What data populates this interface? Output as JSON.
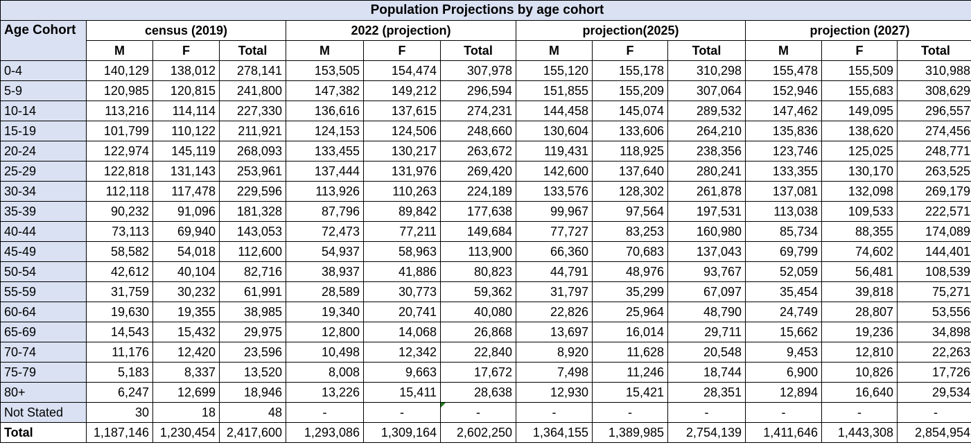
{
  "title": "Population Projections by age cohort",
  "cohort_header": "Age Cohort",
  "groups": [
    "census (2019)",
    "2022 (projection)",
    "projection(2025)",
    "projection (2027)"
  ],
  "sub_headers": [
    "M",
    "F",
    "Total"
  ],
  "rows": [
    {
      "cohort": "0-4",
      "values": [
        "140,129",
        "138,012",
        "278,141",
        "153,505",
        "154,474",
        "307,978",
        "155,120",
        "155,178",
        "310,298",
        "155,478",
        "155,509",
        "310,988"
      ]
    },
    {
      "cohort": "5-9",
      "values": [
        "120,985",
        "120,815",
        "241,800",
        "147,382",
        "149,212",
        "296,594",
        "151,855",
        "155,209",
        "307,064",
        "152,946",
        "155,683",
        "308,629"
      ]
    },
    {
      "cohort": "10-14",
      "values": [
        "113,216",
        "114,114",
        "227,330",
        "136,616",
        "137,615",
        "274,231",
        "144,458",
        "145,074",
        "289,532",
        "147,462",
        "149,095",
        "296,557"
      ]
    },
    {
      "cohort": "15-19",
      "values": [
        "101,799",
        "110,122",
        "211,921",
        "124,153",
        "124,506",
        "248,660",
        "130,604",
        "133,606",
        "264,210",
        "135,836",
        "138,620",
        "274,456"
      ]
    },
    {
      "cohort": "20-24",
      "values": [
        "122,974",
        "145,119",
        "268,093",
        "133,455",
        "130,217",
        "263,672",
        "119,431",
        "118,925",
        "238,356",
        "123,746",
        "125,025",
        "248,771"
      ]
    },
    {
      "cohort": "25-29",
      "values": [
        "122,818",
        "131,143",
        "253,961",
        "137,444",
        "131,976",
        "269,420",
        "142,600",
        "137,640",
        "280,241",
        "133,355",
        "130,170",
        "263,525"
      ]
    },
    {
      "cohort": "30-34",
      "values": [
        "112,118",
        "117,478",
        "229,596",
        "113,926",
        "110,263",
        "224,189",
        "133,576",
        "128,302",
        "261,878",
        "137,081",
        "132,098",
        "269,179"
      ]
    },
    {
      "cohort": "35-39",
      "values": [
        "90,232",
        "91,096",
        "181,328",
        "87,796",
        "89,842",
        "177,638",
        "99,967",
        "97,564",
        "197,531",
        "113,038",
        "109,533",
        "222,571"
      ]
    },
    {
      "cohort": "40-44",
      "values": [
        "73,113",
        "69,940",
        "143,053",
        "72,473",
        "77,211",
        "149,684",
        "77,727",
        "83,253",
        "160,980",
        "85,734",
        "88,355",
        "174,089"
      ]
    },
    {
      "cohort": "45-49",
      "values": [
        "58,582",
        "54,018",
        "112,600",
        "54,937",
        "58,963",
        "113,900",
        "66,360",
        "70,683",
        "137,043",
        "69,799",
        "74,602",
        "144,401"
      ]
    },
    {
      "cohort": "50-54",
      "values": [
        "42,612",
        "40,104",
        "82,716",
        "38,937",
        "41,886",
        "80,823",
        "44,791",
        "48,976",
        "93,767",
        "52,059",
        "56,481",
        "108,539"
      ]
    },
    {
      "cohort": "55-59",
      "values": [
        "31,759",
        "30,232",
        "61,991",
        "28,589",
        "30,773",
        "59,362",
        "31,797",
        "35,299",
        "67,097",
        "35,454",
        "39,818",
        "75,271"
      ]
    },
    {
      "cohort": "60-64",
      "values": [
        "19,630",
        "19,355",
        "38,985",
        "19,340",
        "20,741",
        "40,080",
        "22,826",
        "25,964",
        "48,790",
        "24,749",
        "28,807",
        "53,556"
      ]
    },
    {
      "cohort": "65-69",
      "values": [
        "14,543",
        "15,432",
        "29,975",
        "12,800",
        "14,068",
        "26,868",
        "13,697",
        "16,014",
        "29,711",
        "15,662",
        "19,236",
        "34,898"
      ]
    },
    {
      "cohort": "70-74",
      "values": [
        "11,176",
        "12,420",
        "23,596",
        "10,498",
        "12,342",
        "22,840",
        "8,920",
        "11,628",
        "20,548",
        "9,453",
        "12,810",
        "22,263"
      ]
    },
    {
      "cohort": "75-79",
      "values": [
        "5,183",
        "8,337",
        "13,520",
        "8,008",
        "9,663",
        "17,672",
        "7,498",
        "11,246",
        "18,744",
        "6,900",
        "10,826",
        "17,726"
      ]
    },
    {
      "cohort": "80+",
      "values": [
        "6,247",
        "12,699",
        "18,946",
        "13,226",
        "15,411",
        "28,638",
        "12,930",
        "15,421",
        "28,351",
        "12,894",
        "16,640",
        "29,534"
      ]
    },
    {
      "cohort": "Not Stated",
      "values": [
        "30",
        "18",
        "48",
        "-",
        "-",
        "-",
        "-",
        "-",
        "-",
        "-",
        "-",
        "-"
      ]
    }
  ],
  "total_row": {
    "label": "Total",
    "values": [
      "1,187,146",
      "1,230,454",
      "2,417,600",
      "1,293,086",
      "1,309,164",
      "2,602,250",
      "1,364,155",
      "1,389,985",
      "2,754,139",
      "1,411,646",
      "1,443,308",
      "2,854,954"
    ]
  },
  "colors": {
    "header_fill": "#d9e1f2",
    "grid_line": "#000000",
    "cell_marker": "#1f7a1f"
  }
}
